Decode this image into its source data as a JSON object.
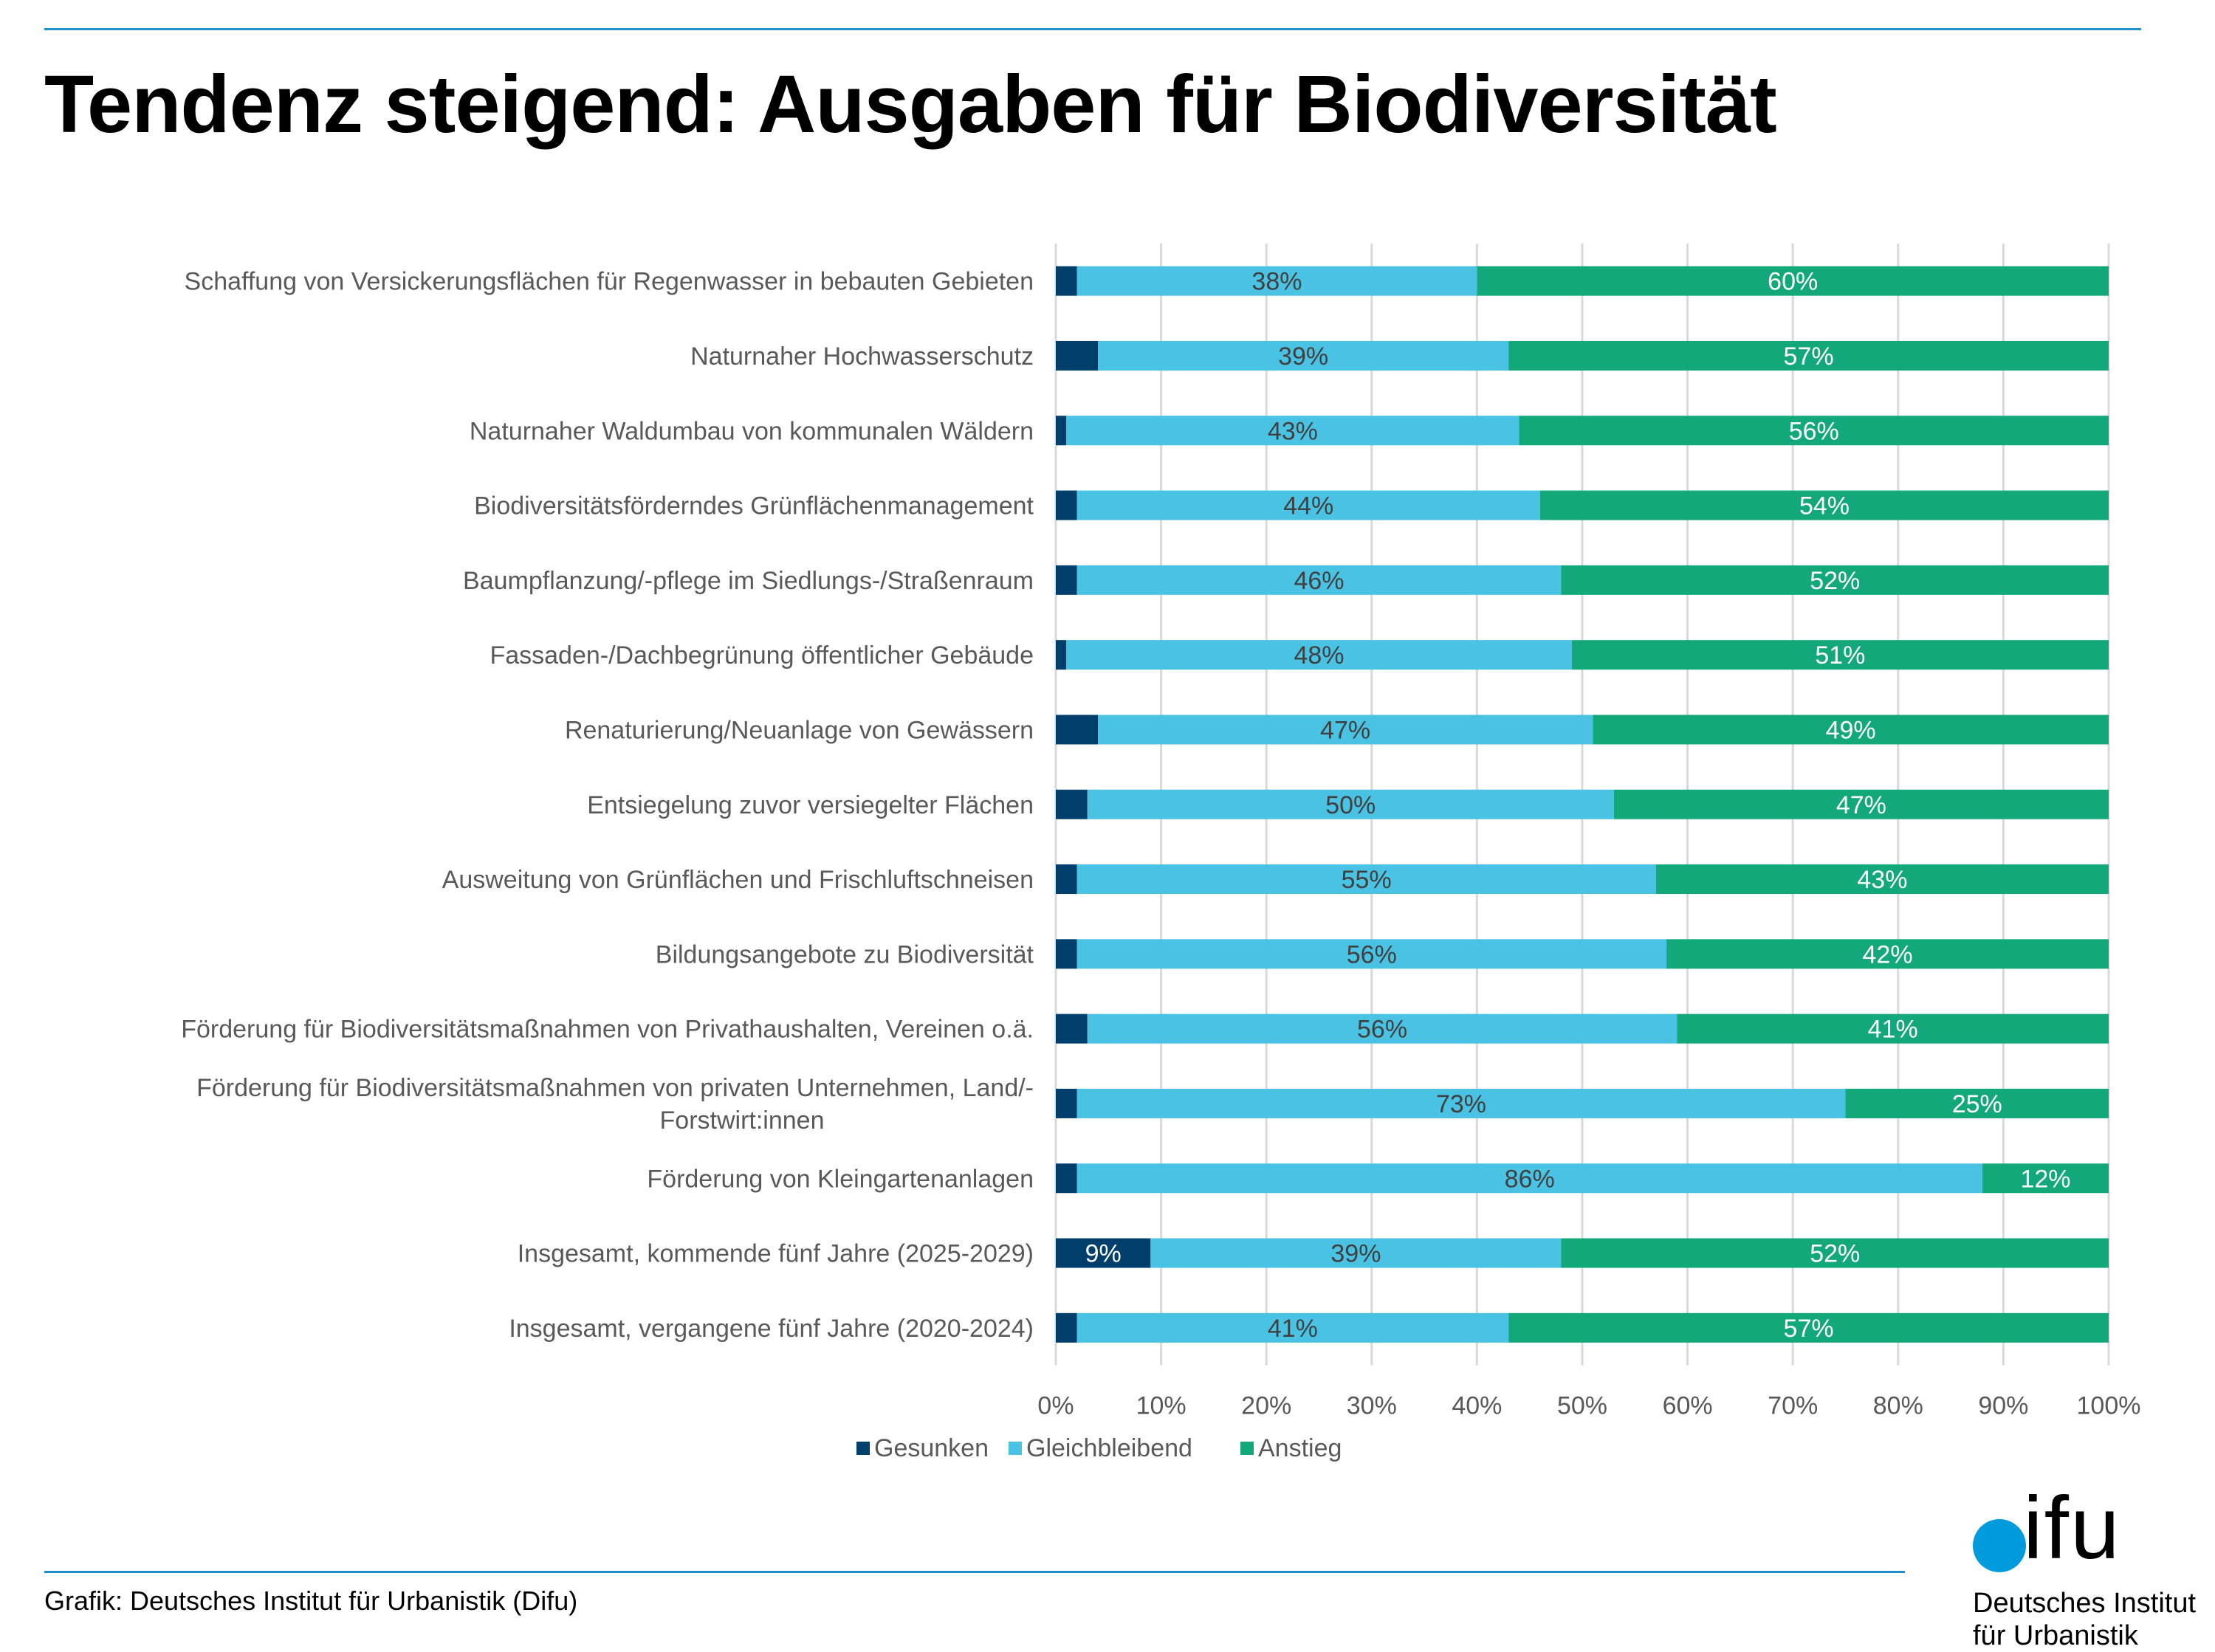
{
  "header": {
    "title": "Tendenz steigend: Ausgaben für Biodiversität"
  },
  "footer": {
    "credit": "Grafik: Deutsches Institut für Urbanistik (Difu)"
  },
  "logo": {
    "wordmark": "ifu",
    "line1": "Deutsches Institut",
    "line2": "für Urbanistik"
  },
  "colors": {
    "gesunken": "#003f6b",
    "gleichbleibend": "#4ac2e4",
    "anstieg": "#12a87a",
    "rule": "#1e90cc"
  },
  "chart_data": {
    "type": "bar",
    "orientation": "horizontal",
    "stacked": "percent",
    "title": "Tendenz steigend: Ausgaben für Biodiversität",
    "xlabel": "",
    "ylabel": "",
    "xlim": [
      0,
      100
    ],
    "x_ticks": [
      "0%",
      "10%",
      "20%",
      "30%",
      "40%",
      "50%",
      "60%",
      "70%",
      "80%",
      "90%",
      "100%"
    ],
    "grid": true,
    "legend_position": "bottom",
    "categories": [
      [
        "Schaffung von Versickerungsflächen für Regenwasser in bebauten Gebieten"
      ],
      [
        "Naturnaher Hochwasserschutz"
      ],
      [
        "Naturnaher Waldumbau von kommunalen Wäldern"
      ],
      [
        "Biodiversitätsförderndes Grünflächenmanagement"
      ],
      [
        "Baumpflanzung/-pflege im Siedlungs-/Straßenraum"
      ],
      [
        "Fassaden-/Dachbegrünung öffentlicher Gebäude"
      ],
      [
        "Renaturierung/Neuanlage von Gewässern"
      ],
      [
        "Entsiegelung zuvor versiegelter Flächen"
      ],
      [
        "Ausweitung von Grünflächen und Frischluftschneisen"
      ],
      [
        "Bildungsangebote zu Biodiversität"
      ],
      [
        "Förderung für Biodiversitätsmaßnahmen von Privathaushalten, Vereinen o.ä."
      ],
      [
        "Förderung für Biodiversitätsmaßnahmen von privaten Unternehmen, Land/-",
        "Forstwirt:innen"
      ],
      [
        "Förderung von Kleingartenanlagen"
      ],
      [
        "Insgesamt, kommende fünf Jahre (2025-2029)"
      ],
      [
        "Insgesamt, vergangene fünf Jahre (2020-2024)"
      ]
    ],
    "series": [
      {
        "name": "Gesunken",
        "color": "#003f6b",
        "label_color": "#ffffff",
        "values": [
          2,
          4,
          1,
          2,
          2,
          1,
          4,
          3,
          2,
          2,
          3,
          2,
          2,
          9,
          2
        ],
        "show_labels": [
          false,
          false,
          false,
          false,
          false,
          false,
          false,
          false,
          false,
          false,
          false,
          false,
          false,
          true,
          false
        ]
      },
      {
        "name": "Gleichbleibend",
        "color": "#4ac2e4",
        "label_color": "#404040",
        "values": [
          38,
          39,
          43,
          44,
          46,
          48,
          47,
          50,
          55,
          56,
          56,
          73,
          86,
          39,
          41
        ],
        "show_labels": [
          true,
          true,
          true,
          true,
          true,
          true,
          true,
          true,
          true,
          true,
          true,
          true,
          true,
          true,
          true
        ]
      },
      {
        "name": "Anstieg",
        "color": "#12a87a",
        "label_color": "#ffffff",
        "values": [
          60,
          57,
          56,
          54,
          52,
          51,
          49,
          47,
          43,
          42,
          41,
          25,
          12,
          52,
          57
        ],
        "show_labels": [
          true,
          true,
          true,
          true,
          true,
          true,
          true,
          true,
          true,
          true,
          true,
          true,
          true,
          true,
          true
        ]
      }
    ]
  }
}
